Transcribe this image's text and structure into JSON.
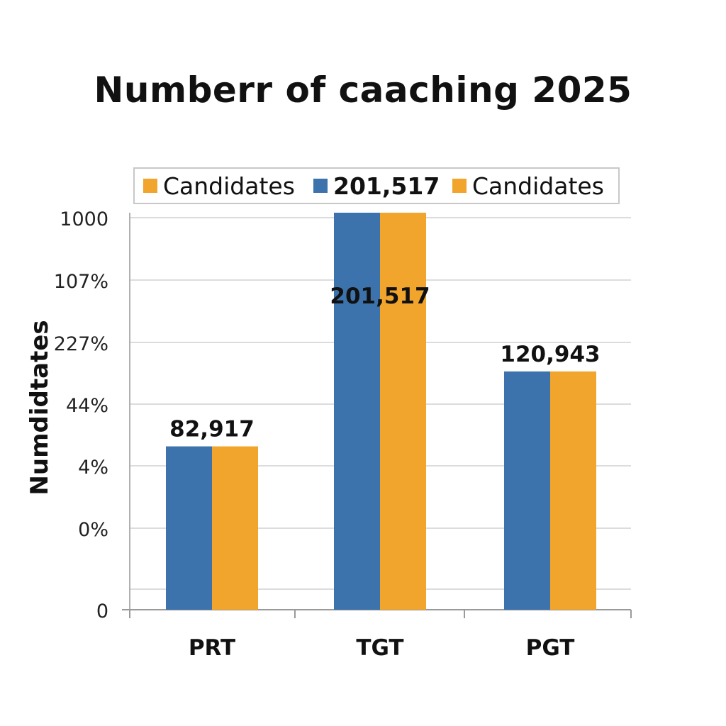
{
  "chart_data": {
    "type": "bar",
    "title": "Numberr of caaching 2025",
    "ylabel": "Numdidtates",
    "xlabel": "",
    "categories": [
      "PRT",
      "TGT",
      "PGT"
    ],
    "series": [
      {
        "name": "Candidates",
        "color": "#3d73ad",
        "values": [
          82917,
          201517,
          120943
        ]
      },
      {
        "name": "Candidates",
        "color": "#f2a52c",
        "values": [
          82917,
          201517,
          120943
        ]
      }
    ],
    "data_labels": [
      "82,917",
      "201,517",
      "120,943"
    ],
    "y_tick_labels": [
      "0",
      "",
      "0%",
      "4%",
      "44%",
      "227%",
      "107%",
      "1000"
    ],
    "grid": true,
    "legend": {
      "position": "top",
      "entries": [
        {
          "label": "Candidates",
          "color": "#f2a52c"
        },
        {
          "label": "201,517",
          "color": "#3d73ad"
        },
        {
          "label": "Candidates",
          "color": "#f2a52c"
        }
      ]
    }
  }
}
